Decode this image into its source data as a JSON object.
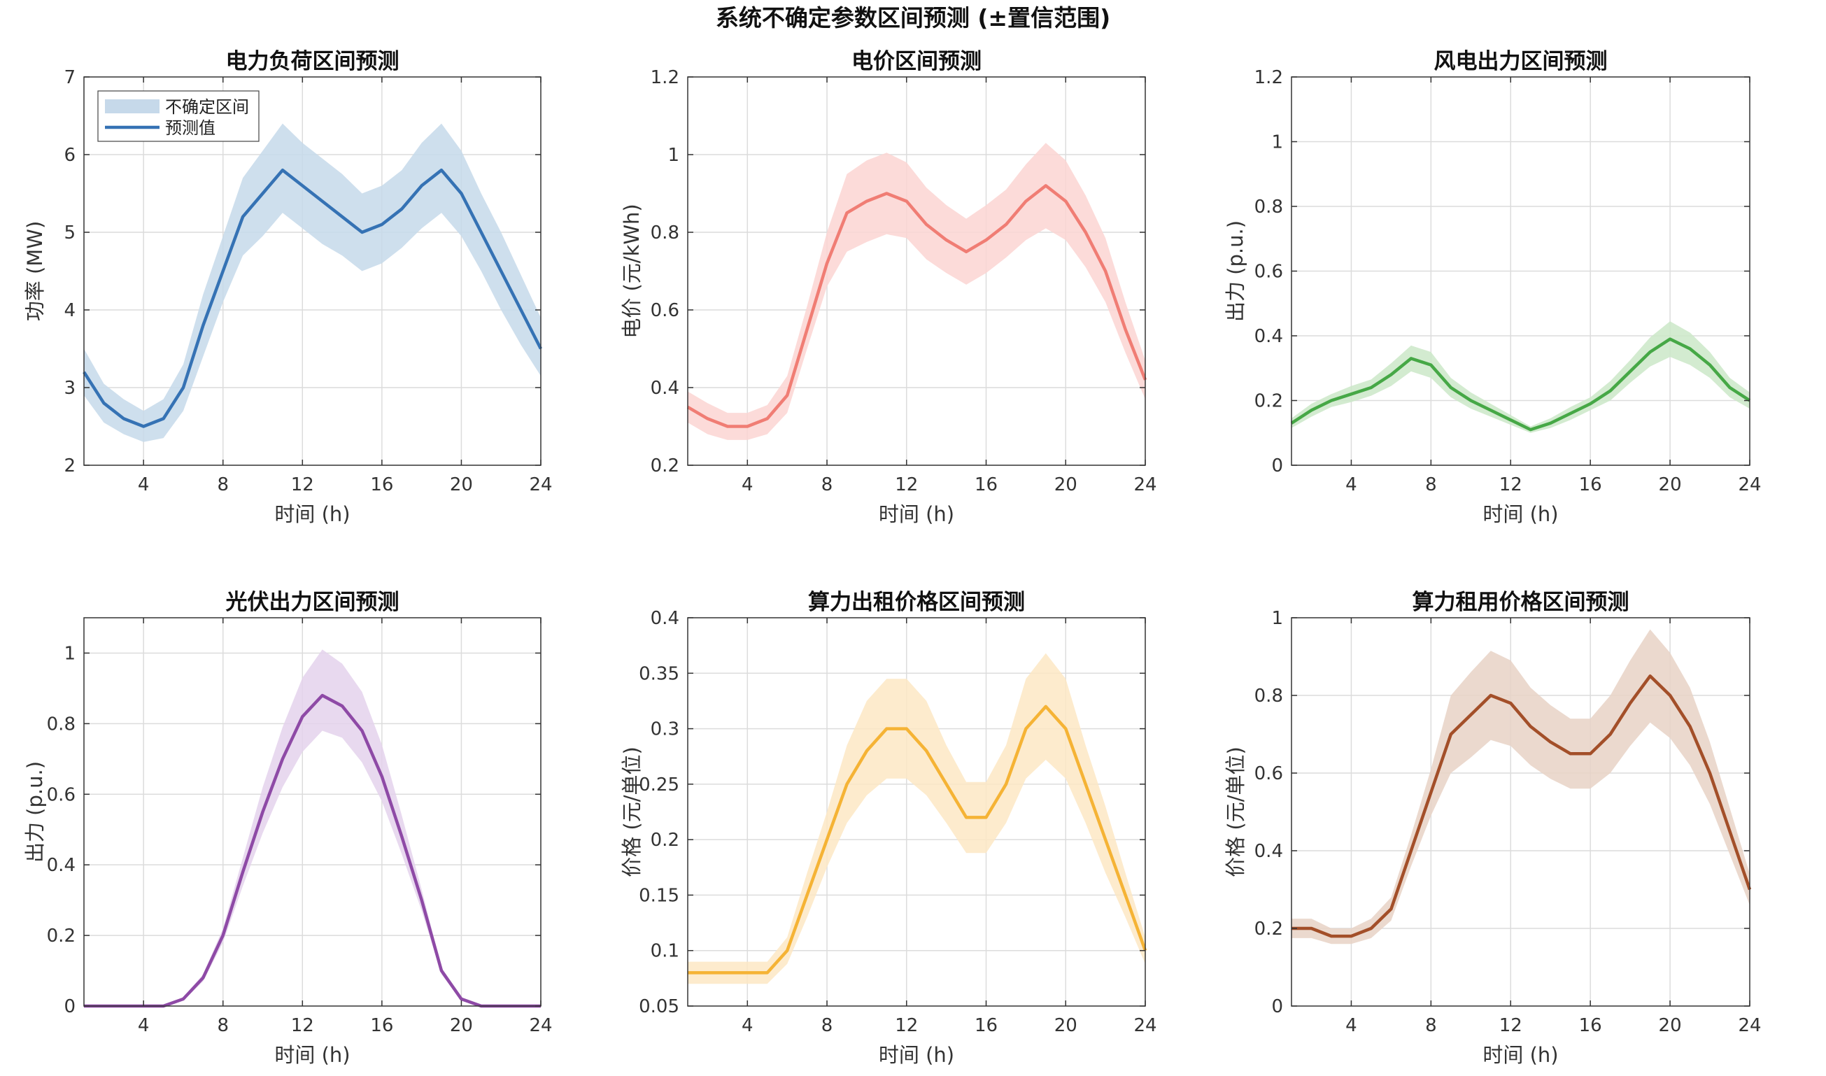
{
  "figure_title": "系统不确定参数区间预测 (±置信范围)",
  "chart_data": [
    {
      "type": "line",
      "title": "电力负荷区间预测",
      "xlabel": "时间 (h)",
      "ylabel": "功率 (MW)",
      "color": "#3572b4",
      "band_color": "#c6d9ea",
      "xlim": [
        1,
        24
      ],
      "ylim": [
        2,
        7
      ],
      "xticks": [
        4,
        8,
        12,
        16,
        20,
        24
      ],
      "yticks": [
        2,
        3,
        4,
        5,
        6,
        7
      ],
      "ytick_labels": [
        "2",
        "3",
        "4",
        "5",
        "6",
        "7"
      ],
      "x": [
        1,
        2,
        3,
        4,
        5,
        6,
        7,
        8,
        9,
        10,
        11,
        12,
        13,
        14,
        15,
        16,
        17,
        18,
        19,
        20,
        21,
        22,
        23,
        24
      ],
      "values": [
        3.2,
        2.8,
        2.6,
        2.5,
        2.6,
        3.0,
        3.8,
        4.5,
        5.2,
        5.5,
        5.8,
        5.6,
        5.4,
        5.2,
        5.0,
        5.1,
        5.3,
        5.6,
        5.8,
        5.5,
        5.0,
        4.5,
        4.0,
        3.5
      ],
      "lower": [
        2.9,
        2.55,
        2.4,
        2.3,
        2.35,
        2.7,
        3.4,
        4.1,
        4.7,
        4.95,
        5.25,
        5.05,
        4.85,
        4.7,
        4.5,
        4.6,
        4.8,
        5.05,
        5.25,
        4.95,
        4.5,
        4.0,
        3.55,
        3.15
      ],
      "upper": [
        3.5,
        3.05,
        2.85,
        2.7,
        2.85,
        3.3,
        4.2,
        4.95,
        5.7,
        6.05,
        6.4,
        6.15,
        5.95,
        5.75,
        5.5,
        5.6,
        5.8,
        6.15,
        6.4,
        6.05,
        5.5,
        5.0,
        4.45,
        3.9
      ],
      "legend": {
        "position": "top-left",
        "entries": [
          "不确定区间",
          "预测值"
        ]
      }
    },
    {
      "type": "line",
      "title": "电价区间预测",
      "xlabel": "时间 (h)",
      "ylabel": "电价 (元/kWh)",
      "color": "#f07d74",
      "band_color": "#fcd5d2",
      "xlim": [
        1,
        24
      ],
      "ylim": [
        0.2,
        1.2
      ],
      "xticks": [
        4,
        8,
        12,
        16,
        20,
        24
      ],
      "yticks": [
        0.2,
        0.4,
        0.6,
        0.8,
        1.0,
        1.2
      ],
      "ytick_labels": [
        "0.2",
        "0.4",
        "0.6",
        "0.8",
        "1",
        "1.2"
      ],
      "x": [
        1,
        2,
        3,
        4,
        5,
        6,
        7,
        8,
        9,
        10,
        11,
        12,
        13,
        14,
        15,
        16,
        17,
        18,
        19,
        20,
        21,
        22,
        23,
        24
      ],
      "values": [
        0.35,
        0.32,
        0.3,
        0.3,
        0.32,
        0.38,
        0.55,
        0.72,
        0.85,
        0.88,
        0.9,
        0.88,
        0.82,
        0.78,
        0.75,
        0.78,
        0.82,
        0.88,
        0.92,
        0.88,
        0.8,
        0.7,
        0.55,
        0.42
      ],
      "lower": [
        0.31,
        0.28,
        0.265,
        0.265,
        0.28,
        0.335,
        0.5,
        0.66,
        0.75,
        0.775,
        0.795,
        0.785,
        0.73,
        0.695,
        0.665,
        0.695,
        0.735,
        0.78,
        0.81,
        0.78,
        0.71,
        0.62,
        0.49,
        0.37
      ],
      "upper": [
        0.39,
        0.36,
        0.335,
        0.335,
        0.355,
        0.43,
        0.61,
        0.8,
        0.95,
        0.985,
        1.005,
        0.98,
        0.915,
        0.87,
        0.835,
        0.87,
        0.91,
        0.975,
        1.03,
        0.985,
        0.895,
        0.785,
        0.62,
        0.47
      ]
    },
    {
      "type": "line",
      "title": "风电出力区间预测",
      "xlabel": "时间 (h)",
      "ylabel": "出力 (p.u.)",
      "color": "#46a846",
      "band_color": "#cbe8c8",
      "xlim": [
        1,
        24
      ],
      "ylim": [
        0,
        1.2
      ],
      "xticks": [
        4,
        8,
        12,
        16,
        20,
        24
      ],
      "yticks": [
        0,
        0.2,
        0.4,
        0.6,
        0.8,
        1.0,
        1.2
      ],
      "ytick_labels": [
        "0",
        "0.2",
        "0.4",
        "0.6",
        "0.8",
        "1",
        "1.2"
      ],
      "x": [
        1,
        2,
        3,
        4,
        5,
        6,
        7,
        8,
        9,
        10,
        11,
        12,
        13,
        14,
        15,
        16,
        17,
        18,
        19,
        20,
        21,
        22,
        23,
        24
      ],
      "values": [
        0.13,
        0.17,
        0.2,
        0.22,
        0.24,
        0.28,
        0.33,
        0.31,
        0.24,
        0.2,
        0.17,
        0.14,
        0.11,
        0.13,
        0.16,
        0.19,
        0.23,
        0.29,
        0.35,
        0.39,
        0.36,
        0.31,
        0.24,
        0.2
      ],
      "lower": [
        0.115,
        0.15,
        0.18,
        0.195,
        0.215,
        0.245,
        0.29,
        0.27,
        0.21,
        0.175,
        0.15,
        0.125,
        0.1,
        0.115,
        0.14,
        0.17,
        0.2,
        0.255,
        0.305,
        0.335,
        0.31,
        0.27,
        0.21,
        0.175
      ],
      "upper": [
        0.145,
        0.19,
        0.22,
        0.245,
        0.265,
        0.315,
        0.37,
        0.35,
        0.27,
        0.225,
        0.19,
        0.155,
        0.12,
        0.145,
        0.18,
        0.21,
        0.26,
        0.325,
        0.395,
        0.445,
        0.41,
        0.35,
        0.27,
        0.225
      ]
    },
    {
      "type": "line",
      "title": "光伏出力区间预测",
      "xlabel": "时间 (h)",
      "ylabel": "出力 (p.u.)",
      "color": "#8e4aa6",
      "band_color": "#e4d2ec",
      "xlim": [
        1,
        24
      ],
      "ylim": [
        0,
        1.1
      ],
      "xticks": [
        4,
        8,
        12,
        16,
        20,
        24
      ],
      "yticks": [
        0,
        0.2,
        0.4,
        0.6,
        0.8,
        1.0
      ],
      "ytick_labels": [
        "0",
        "0.2",
        "0.4",
        "0.6",
        "0.8",
        "1"
      ],
      "x": [
        1,
        2,
        3,
        4,
        5,
        6,
        7,
        8,
        9,
        10,
        11,
        12,
        13,
        14,
        15,
        16,
        17,
        18,
        19,
        20,
        21,
        22,
        23,
        24
      ],
      "values": [
        0,
        0,
        0,
        0,
        0,
        0.02,
        0.08,
        0.2,
        0.38,
        0.55,
        0.7,
        0.82,
        0.88,
        0.85,
        0.78,
        0.65,
        0.48,
        0.3,
        0.1,
        0.02,
        0,
        0,
        0,
        0
      ],
      "lower": [
        0,
        0,
        0,
        0,
        0,
        0.015,
        0.07,
        0.18,
        0.34,
        0.49,
        0.62,
        0.72,
        0.78,
        0.76,
        0.69,
        0.58,
        0.43,
        0.27,
        0.09,
        0.015,
        0,
        0,
        0,
        0
      ],
      "upper": [
        0,
        0,
        0,
        0,
        0,
        0.025,
        0.09,
        0.22,
        0.42,
        0.62,
        0.79,
        0.93,
        1.01,
        0.97,
        0.89,
        0.74,
        0.54,
        0.33,
        0.11,
        0.025,
        0,
        0,
        0,
        0
      ]
    },
    {
      "type": "line",
      "title": "算力出租价格区间预测",
      "xlabel": "时间 (h)",
      "ylabel": "价格 (元/单位)",
      "color": "#f5b335",
      "band_color": "#fde8c4",
      "xlim": [
        1,
        24
      ],
      "ylim": [
        0.05,
        0.4
      ],
      "xticks": [
        4,
        8,
        12,
        16,
        20,
        24
      ],
      "yticks": [
        0.05,
        0.1,
        0.15,
        0.2,
        0.25,
        0.3,
        0.35,
        0.4
      ],
      "ytick_labels": [
        "0.05",
        "0.1",
        "0.15",
        "0.2",
        "0.25",
        "0.3",
        "0.35",
        "0.4"
      ],
      "x": [
        1,
        2,
        3,
        4,
        5,
        6,
        7,
        8,
        9,
        10,
        11,
        12,
        13,
        14,
        15,
        16,
        17,
        18,
        19,
        20,
        21,
        22,
        23,
        24
      ],
      "values": [
        0.08,
        0.08,
        0.08,
        0.08,
        0.08,
        0.1,
        0.15,
        0.2,
        0.25,
        0.28,
        0.3,
        0.3,
        0.28,
        0.25,
        0.22,
        0.22,
        0.25,
        0.3,
        0.32,
        0.3,
        0.25,
        0.2,
        0.15,
        0.1
      ],
      "lower": [
        0.07,
        0.07,
        0.07,
        0.07,
        0.07,
        0.088,
        0.13,
        0.175,
        0.215,
        0.24,
        0.255,
        0.255,
        0.24,
        0.215,
        0.188,
        0.188,
        0.215,
        0.255,
        0.272,
        0.255,
        0.215,
        0.17,
        0.13,
        0.088
      ],
      "upper": [
        0.09,
        0.09,
        0.09,
        0.09,
        0.09,
        0.112,
        0.17,
        0.225,
        0.285,
        0.325,
        0.345,
        0.345,
        0.325,
        0.285,
        0.252,
        0.252,
        0.285,
        0.345,
        0.368,
        0.345,
        0.285,
        0.23,
        0.17,
        0.112
      ]
    },
    {
      "type": "line",
      "title": "算力租用价格区间预测",
      "xlabel": "时间 (h)",
      "ylabel": "价格 (元/单位)",
      "color": "#a34f29",
      "band_color": "#e8d2c6",
      "xlim": [
        1,
        24
      ],
      "ylim": [
        0,
        1
      ],
      "xticks": [
        4,
        8,
        12,
        16,
        20,
        24
      ],
      "yticks": [
        0,
        0.2,
        0.4,
        0.6,
        0.8,
        1.0
      ],
      "ytick_labels": [
        "0",
        "0.2",
        "0.4",
        "0.6",
        "0.8",
        "1"
      ],
      "x": [
        1,
        2,
        3,
        4,
        5,
        6,
        7,
        8,
        9,
        10,
        11,
        12,
        13,
        14,
        15,
        16,
        17,
        18,
        19,
        20,
        21,
        22,
        23,
        24
      ],
      "values": [
        0.2,
        0.2,
        0.18,
        0.18,
        0.2,
        0.25,
        0.4,
        0.55,
        0.7,
        0.75,
        0.8,
        0.78,
        0.72,
        0.68,
        0.65,
        0.65,
        0.7,
        0.78,
        0.85,
        0.8,
        0.72,
        0.6,
        0.45,
        0.3
      ],
      "lower": [
        0.175,
        0.175,
        0.16,
        0.16,
        0.175,
        0.22,
        0.36,
        0.49,
        0.6,
        0.64,
        0.685,
        0.67,
        0.62,
        0.585,
        0.56,
        0.56,
        0.6,
        0.67,
        0.73,
        0.69,
        0.62,
        0.52,
        0.39,
        0.26
      ],
      "upper": [
        0.225,
        0.225,
        0.2,
        0.2,
        0.225,
        0.28,
        0.44,
        0.61,
        0.8,
        0.86,
        0.915,
        0.89,
        0.82,
        0.775,
        0.74,
        0.74,
        0.8,
        0.89,
        0.97,
        0.91,
        0.82,
        0.68,
        0.51,
        0.34
      ]
    }
  ]
}
